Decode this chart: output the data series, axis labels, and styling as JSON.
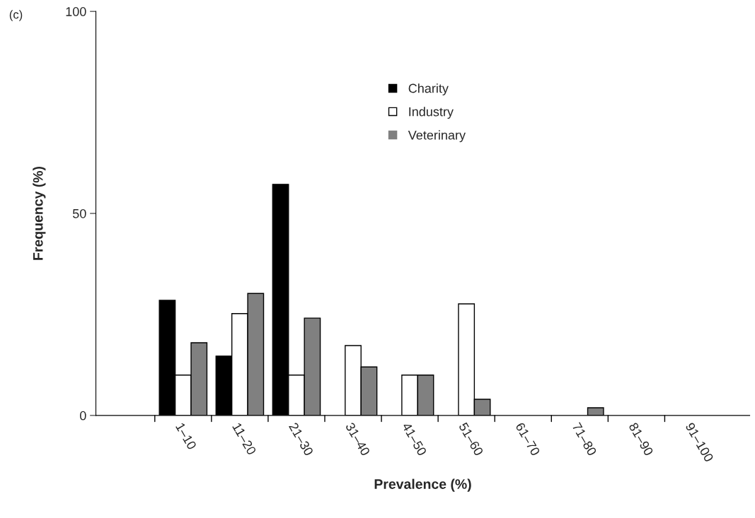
{
  "chart_data": {
    "type": "bar",
    "xlabel": "Prevalence (%)",
    "ylabel": "Frequency (%)",
    "categories": [
      "1–10",
      "11–20",
      "21–30",
      "31–40",
      "41–50",
      "51–60",
      "61–70",
      "71–80",
      "81–90",
      "91–100"
    ],
    "series": [
      {
        "name": "Charity",
        "color": "#000000",
        "values": [
          28.5,
          14.7,
          57.2,
          null,
          null,
          null,
          null,
          null,
          null,
          null
        ]
      },
      {
        "name": "Industry",
        "color": "#ffffff",
        "values": [
          10,
          25.2,
          10,
          17.3,
          10,
          27.6,
          null,
          null,
          null,
          null
        ]
      },
      {
        "name": "Veterinary",
        "color": "#808080",
        "values": [
          18,
          30.2,
          24.1,
          12,
          10,
          4,
          null,
          1.9,
          null,
          null
        ]
      }
    ],
    "ylim": [
      0,
      100
    ],
    "yticks": [
      0,
      50,
      100
    ],
    "grid": false,
    "legend": "top",
    "annotations": [
      "(c)"
    ]
  }
}
